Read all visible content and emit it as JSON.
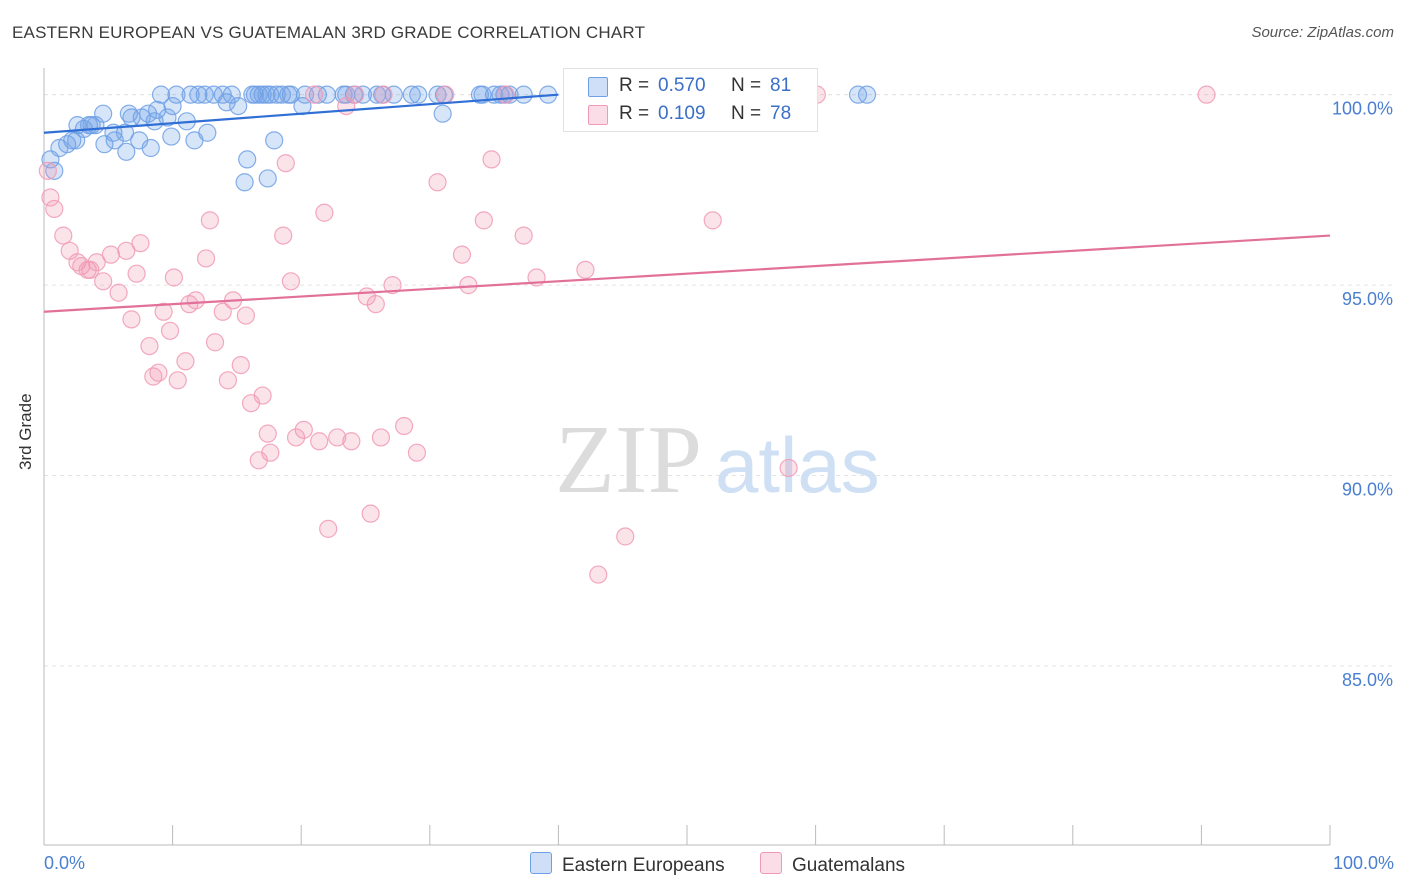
{
  "title": "EASTERN EUROPEAN VS GUATEMALAN 3RD GRADE CORRELATION CHART",
  "source": "Source: ZipAtlas.com",
  "watermark": {
    "zip": "ZIP",
    "atlas": "atlas"
  },
  "legend": {
    "rows": [
      {
        "r_label": "R =",
        "r_value": "0.570",
        "n_label": "N =",
        "n_value": "81",
        "color": "#6ea0e6"
      },
      {
        "r_label": "R =",
        "r_value": "0.109",
        "n_label": "N =",
        "n_value": "78",
        "color": "#f19ab5"
      }
    ]
  },
  "bottom_legend": {
    "s0": "Eastern Europeans",
    "s1": "Guatemalans"
  },
  "chart_data": {
    "type": "scatter",
    "title": "EASTERN EUROPEAN VS GUATEMALAN 3RD GRADE CORRELATION CHART",
    "xlabel": "",
    "ylabel": "3rd Grade",
    "xlim": [
      0,
      100
    ],
    "ylim": [
      80.3,
      100.7
    ],
    "x_tick_labels": [
      "0.0%",
      "100.0%"
    ],
    "y_ticks": [
      85,
      90,
      95,
      100
    ],
    "y_tick_labels": [
      "85.0%",
      "90.0%",
      "95.0%",
      "100.0%"
    ],
    "grid": true,
    "legend_position": "top-center",
    "series": [
      {
        "name": "Eastern Europeans",
        "color": "#6ea0e6",
        "trend": {
          "x": [
            0,
            40
          ],
          "y": [
            99.0,
            100.0
          ]
        },
        "points": [
          [
            0.5,
            98.3
          ],
          [
            0.8,
            98.0
          ],
          [
            1.2,
            98.6
          ],
          [
            1.8,
            98.7
          ],
          [
            2.2,
            98.8
          ],
          [
            2.5,
            98.8
          ],
          [
            2.6,
            99.2
          ],
          [
            3.1,
            99.1
          ],
          [
            3.5,
            99.2
          ],
          [
            3.7,
            99.2
          ],
          [
            4.0,
            99.2
          ],
          [
            4.6,
            99.5
          ],
          [
            4.7,
            98.7
          ],
          [
            5.4,
            99.0
          ],
          [
            5.5,
            98.8
          ],
          [
            6.3,
            99.0
          ],
          [
            6.4,
            98.5
          ],
          [
            6.6,
            99.5
          ],
          [
            6.8,
            99.4
          ],
          [
            7.4,
            98.8
          ],
          [
            7.6,
            99.4
          ],
          [
            8.1,
            99.5
          ],
          [
            8.3,
            98.6
          ],
          [
            8.6,
            99.3
          ],
          [
            8.8,
            99.6
          ],
          [
            9.1,
            100.0
          ],
          [
            9.6,
            99.4
          ],
          [
            9.9,
            98.9
          ],
          [
            10.0,
            99.7
          ],
          [
            10.3,
            100.0
          ],
          [
            11.1,
            99.3
          ],
          [
            11.4,
            100.0
          ],
          [
            11.7,
            98.8
          ],
          [
            12.0,
            100.0
          ],
          [
            12.5,
            100.0
          ],
          [
            12.7,
            99.0
          ],
          [
            13.2,
            100.0
          ],
          [
            13.9,
            100.0
          ],
          [
            14.2,
            99.8
          ],
          [
            14.6,
            100.0
          ],
          [
            15.1,
            99.7
          ],
          [
            15.8,
            98.3
          ],
          [
            15.6,
            97.7
          ],
          [
            16.2,
            100.0
          ],
          [
            16.4,
            100.0
          ],
          [
            16.7,
            100.0
          ],
          [
            17.0,
            100.0
          ],
          [
            17.3,
            100.0
          ],
          [
            17.4,
            97.8
          ],
          [
            17.6,
            100.0
          ],
          [
            17.9,
            98.8
          ],
          [
            18.1,
            100.0
          ],
          [
            18.5,
            100.0
          ],
          [
            19.0,
            100.0
          ],
          [
            19.2,
            100.0
          ],
          [
            20.3,
            100.0
          ],
          [
            20.1,
            99.7
          ],
          [
            21.3,
            100.0
          ],
          [
            22.0,
            100.0
          ],
          [
            23.3,
            100.0
          ],
          [
            23.5,
            100.0
          ],
          [
            24.1,
            100.0
          ],
          [
            24.8,
            100.0
          ],
          [
            25.9,
            100.0
          ],
          [
            26.3,
            100.0
          ],
          [
            27.2,
            100.0
          ],
          [
            28.6,
            100.0
          ],
          [
            29.1,
            100.0
          ],
          [
            30.6,
            100.0
          ],
          [
            31.1,
            100.0
          ],
          [
            31.0,
            99.5
          ],
          [
            33.9,
            100.0
          ],
          [
            34.1,
            100.0
          ],
          [
            35.0,
            100.0
          ],
          [
            35.5,
            100.0
          ],
          [
            35.8,
            100.0
          ],
          [
            36.2,
            100.0
          ],
          [
            37.3,
            100.0
          ],
          [
            39.2,
            100.0
          ],
          [
            63.3,
            100.0
          ],
          [
            64.0,
            100.0
          ]
        ]
      },
      {
        "name": "Guatemalans",
        "color": "#f19ab5",
        "trend": {
          "x": [
            0,
            100
          ],
          "y": [
            94.3,
            96.3
          ]
        },
        "points": [
          [
            0.3,
            98.0
          ],
          [
            0.5,
            97.3
          ],
          [
            0.8,
            97.0
          ],
          [
            1.5,
            96.3
          ],
          [
            2.0,
            95.9
          ],
          [
            2.6,
            95.6
          ],
          [
            2.9,
            95.5
          ],
          [
            3.4,
            95.4
          ],
          [
            3.6,
            95.4
          ],
          [
            4.1,
            95.6
          ],
          [
            4.6,
            95.1
          ],
          [
            5.2,
            95.8
          ],
          [
            5.8,
            94.8
          ],
          [
            6.4,
            95.9
          ],
          [
            6.8,
            94.1
          ],
          [
            7.2,
            95.3
          ],
          [
            7.5,
            96.1
          ],
          [
            8.2,
            93.4
          ],
          [
            8.5,
            92.6
          ],
          [
            8.9,
            92.7
          ],
          [
            9.3,
            94.3
          ],
          [
            9.8,
            93.8
          ],
          [
            10.1,
            95.2
          ],
          [
            10.4,
            92.5
          ],
          [
            11.0,
            93.0
          ],
          [
            11.3,
            94.5
          ],
          [
            11.8,
            94.6
          ],
          [
            12.6,
            95.7
          ],
          [
            12.9,
            96.7
          ],
          [
            13.3,
            93.5
          ],
          [
            13.9,
            94.3
          ],
          [
            14.3,
            92.5
          ],
          [
            14.7,
            94.6
          ],
          [
            15.3,
            92.9
          ],
          [
            15.7,
            94.2
          ],
          [
            16.1,
            91.9
          ],
          [
            16.7,
            90.4
          ],
          [
            17.0,
            92.1
          ],
          [
            17.4,
            91.1
          ],
          [
            17.6,
            90.6
          ],
          [
            18.6,
            96.3
          ],
          [
            18.8,
            98.2
          ],
          [
            19.2,
            95.1
          ],
          [
            19.6,
            91.0
          ],
          [
            20.2,
            91.2
          ],
          [
            21.0,
            100.0
          ],
          [
            21.4,
            90.9
          ],
          [
            21.8,
            96.9
          ],
          [
            22.1,
            88.6
          ],
          [
            22.8,
            91.0
          ],
          [
            23.5,
            99.7
          ],
          [
            23.9,
            90.9
          ],
          [
            24.2,
            100.0
          ],
          [
            25.1,
            94.7
          ],
          [
            25.4,
            89.0
          ],
          [
            25.8,
            94.5
          ],
          [
            26.4,
            100.0
          ],
          [
            26.2,
            91.0
          ],
          [
            27.1,
            95.0
          ],
          [
            28.0,
            91.3
          ],
          [
            29.0,
            90.6
          ],
          [
            30.6,
            97.7
          ],
          [
            31.2,
            100.0
          ],
          [
            32.5,
            95.8
          ],
          [
            33.0,
            95.0
          ],
          [
            34.2,
            96.7
          ],
          [
            34.8,
            98.3
          ],
          [
            35.9,
            100.0
          ],
          [
            37.3,
            96.3
          ],
          [
            38.3,
            95.2
          ],
          [
            42.1,
            95.4
          ],
          [
            45.2,
            88.4
          ],
          [
            43.1,
            87.4
          ],
          [
            52.0,
            96.7
          ],
          [
            55.7,
            100.0
          ],
          [
            57.9,
            90.2
          ],
          [
            60.1,
            100.0
          ],
          [
            90.4,
            100.0
          ]
        ]
      }
    ]
  }
}
